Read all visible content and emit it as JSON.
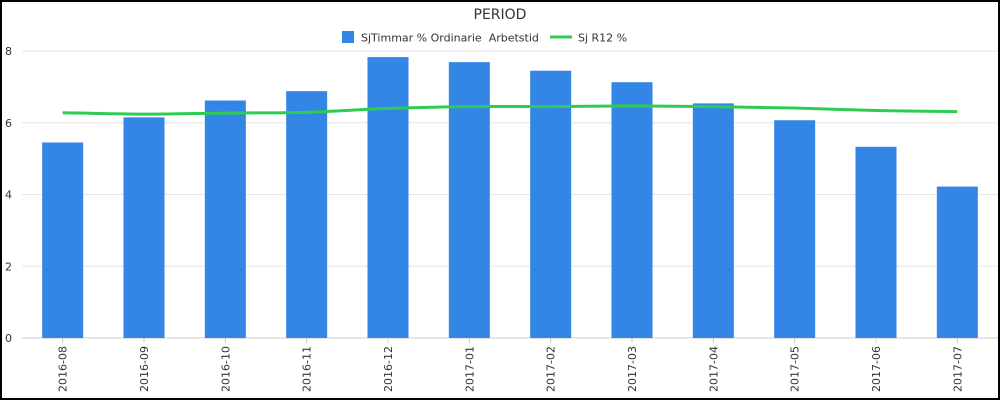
{
  "chart_data": {
    "type": "bar",
    "title": "PERIOD",
    "categories": [
      "2016-08",
      "2016-09",
      "2016-10",
      "2016-11",
      "2016-12",
      "2017-01",
      "2017-02",
      "2017-03",
      "2017-04",
      "2017-05",
      "2017-06",
      "2017-07"
    ],
    "series": [
      {
        "name": "SjTimmar % Ordinarie  Arbetstid",
        "type": "bar",
        "color": "#3385e6",
        "values": [
          5.45,
          6.15,
          6.62,
          6.88,
          7.83,
          7.69,
          7.45,
          7.13,
          6.54,
          6.07,
          5.33,
          4.22
        ]
      },
      {
        "name": "Sj R12 %",
        "type": "line",
        "color": "#2ecc52",
        "values": [
          6.28,
          6.24,
          6.27,
          6.29,
          6.4,
          6.45,
          6.45,
          6.47,
          6.45,
          6.41,
          6.34,
          6.31
        ]
      }
    ],
    "ylim": [
      0,
      8
    ],
    "yticks": [
      "0",
      "2",
      "4",
      "6",
      "8"
    ],
    "grid": true,
    "legend": "top-center"
  }
}
